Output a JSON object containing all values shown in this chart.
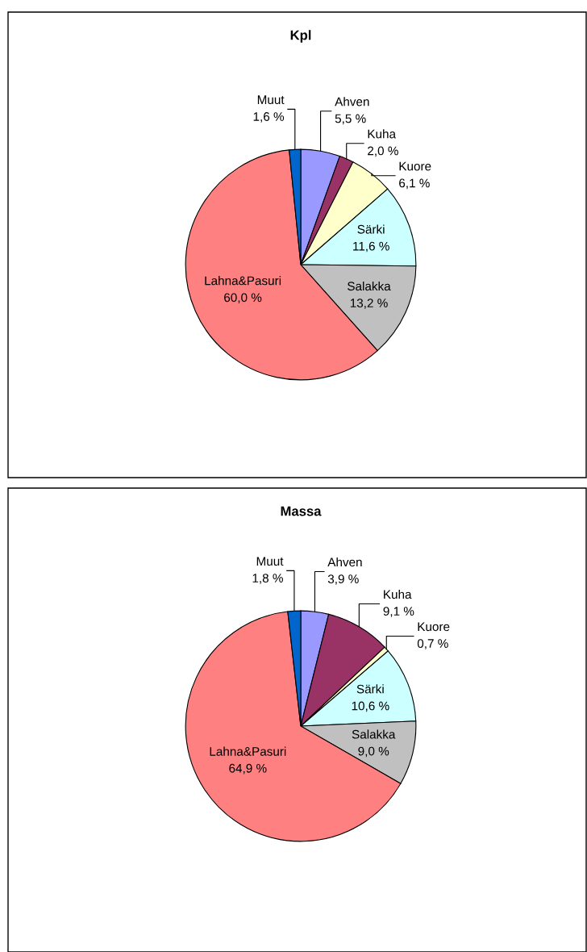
{
  "chart_data": [
    {
      "type": "pie",
      "title": "Kpl",
      "categories": [
        "Ahven",
        "Kuha",
        "Kuore",
        "Särki",
        "Salakka",
        "Lahna&Pasuri",
        "Muut"
      ],
      "values": [
        5.5,
        2.0,
        6.1,
        11.6,
        13.2,
        60.0,
        1.6
      ],
      "value_labels": [
        "5,5 %",
        "2,0 %",
        "6,1 %",
        "11,6 %",
        "13,2 %",
        "60,0 %",
        "1,6 %"
      ],
      "colors": [
        "#9999ff",
        "#993366",
        "#ffffcc",
        "#ccffff",
        "#c0c0c0",
        "#ff8080",
        "#0066cc"
      ]
    },
    {
      "type": "pie",
      "title": "Massa",
      "categories": [
        "Ahven",
        "Kuha",
        "Kuore",
        "Särki",
        "Salakka",
        "Lahna&Pasuri",
        "Muut"
      ],
      "values": [
        3.9,
        9.1,
        0.7,
        10.6,
        9.0,
        64.9,
        1.8
      ],
      "value_labels": [
        "3,9 %",
        "9,1 %",
        "0,7 %",
        "10,6 %",
        "9,0 %",
        "64,9 %",
        "1,8 %"
      ],
      "colors": [
        "#9999ff",
        "#993366",
        "#ffffcc",
        "#ccffff",
        "#c0c0c0",
        "#ff8080",
        "#0066cc"
      ]
    }
  ]
}
